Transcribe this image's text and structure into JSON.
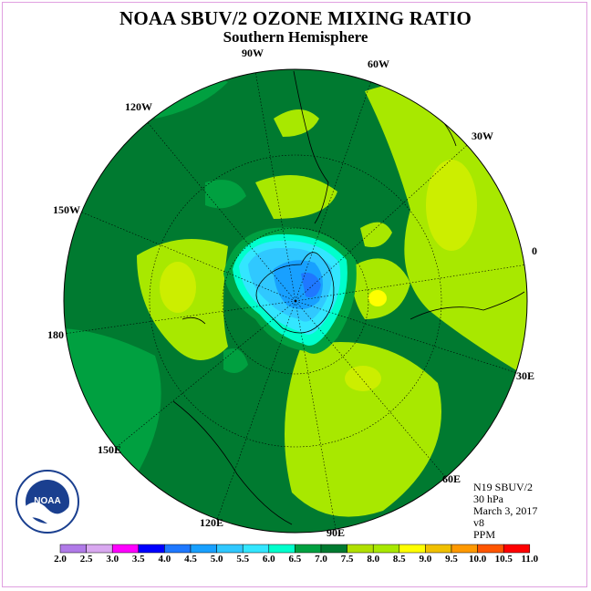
{
  "title": "NOAA SBUV/2 OZONE MIXING RATIO",
  "subtitle": "Southern Hemisphere",
  "longitude_labels": {
    "w90": "90W",
    "w60": "60W",
    "w30": "30W",
    "w120": "120W",
    "w150": "150W",
    "e0": "0",
    "w180": "180",
    "e30": "30E",
    "e150": "150E",
    "e60": "60E",
    "e120": "120E",
    "e90": "90E"
  },
  "info": {
    "satellite": "N19 SBUV/2",
    "pressure": "30 hPa",
    "date": "March 3, 2017",
    "version": "v8",
    "units": "PPM"
  },
  "logo_text": "NOAA",
  "colorbar": {
    "labels": [
      "2.0",
      "2.5",
      "3.0",
      "3.5",
      "4.0",
      "4.5",
      "5.0",
      "5.5",
      "6.0",
      "6.5",
      "7.0",
      "7.5",
      "8.0",
      "8.5",
      "9.0",
      "9.5",
      "10.0",
      "10.5",
      "11.0"
    ],
    "colors": [
      "#b07ae8",
      "#d9a8f0",
      "#ff00ff",
      "#0000ff",
      "#1f78ff",
      "#18a0ff",
      "#30c8ff",
      "#33e6ff",
      "#00ffcc",
      "#00a040",
      "#007a30",
      "#b0e000",
      "#a8e800",
      "#ffff00",
      "#f0c000",
      "#ff9900",
      "#ff5500",
      "#ff0000",
      "#8b4513"
    ]
  },
  "colors": {
    "field_base": "#007a30",
    "field_mid": "#00a040",
    "field_light": "#a8e800",
    "field_yellow": "#ffff00"
  }
}
